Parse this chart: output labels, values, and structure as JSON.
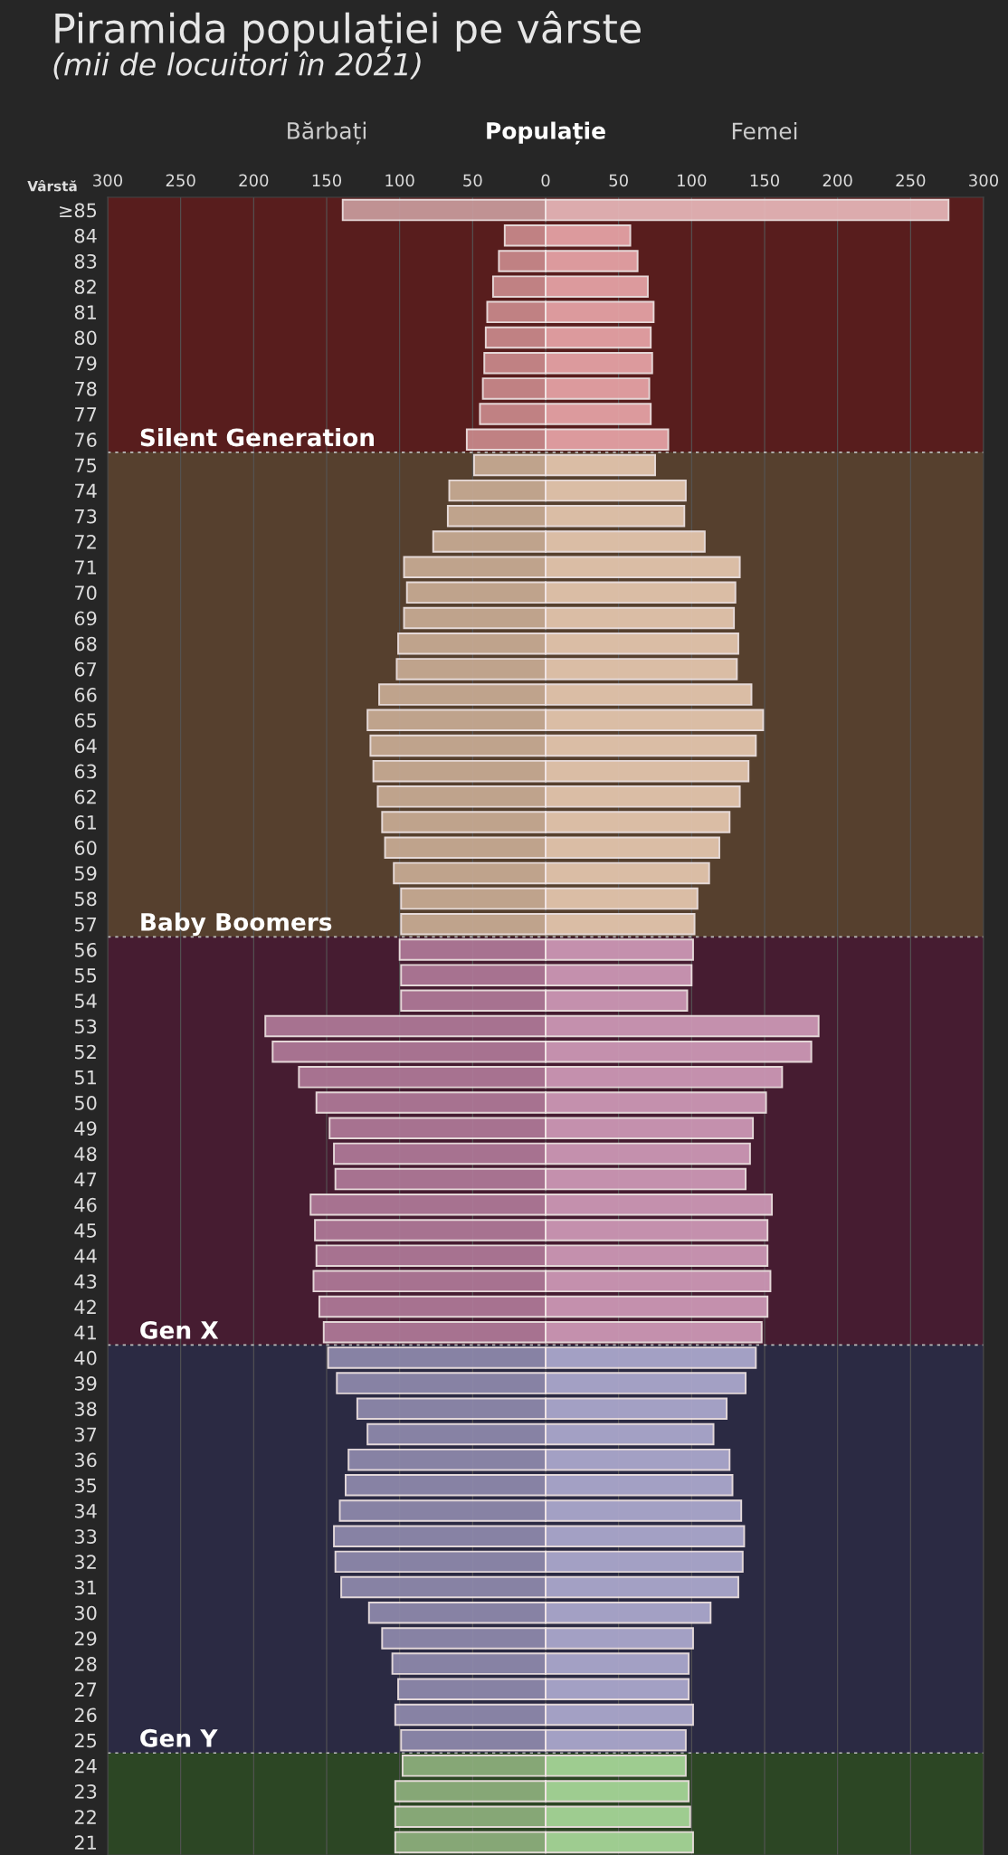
{
  "chart_data": {
    "type": "bar",
    "orientation": "horizontal",
    "title": "Piramida populației pe vârste",
    "subtitle": "(mii de locuitori în 2021)",
    "xlabel": "Populație",
    "ylabel": "Vârstă",
    "categories": [
      "≥85",
      "84",
      "83",
      "82",
      "81",
      "80",
      "79",
      "78",
      "77",
      "76",
      "75",
      "74",
      "73",
      "72",
      "71",
      "70",
      "69",
      "68",
      "67",
      "66",
      "65",
      "64",
      "63",
      "62",
      "61",
      "60",
      "59",
      "58",
      "57",
      "56",
      "55",
      "54",
      "53",
      "52",
      "51",
      "50",
      "49",
      "48",
      "47",
      "46",
      "45",
      "44",
      "43",
      "42",
      "41",
      "40",
      "39",
      "38",
      "37",
      "36",
      "35",
      "34",
      "33",
      "32",
      "31",
      "30",
      "29",
      "28",
      "27",
      "26",
      "25",
      "24",
      "23",
      "22",
      "21"
    ],
    "series": [
      {
        "name": "Bărbați",
        "values": [
          -139,
          -28,
          -32,
          -36,
          -40,
          -41,
          -42,
          -43,
          -45,
          -54,
          -49,
          -66,
          -67,
          -77,
          -97,
          -95,
          -97,
          -101,
          -102,
          -114,
          -122,
          -120,
          -118,
          -115,
          -112,
          -110,
          -104,
          -99,
          -99,
          -100,
          -99,
          -99,
          -192,
          -187,
          -169,
          -157,
          -148,
          -145,
          -144,
          -161,
          -158,
          -157,
          -159,
          -155,
          -152,
          -149,
          -143,
          -129,
          -122,
          -135,
          -137,
          -141,
          -145,
          -144,
          -140,
          -121,
          -112,
          -105,
          -101,
          -103,
          -99,
          -98,
          -103,
          -103,
          -103
        ],
        "colors": [
          "#c99c9e",
          "#c98a8c",
          "#c98a8c",
          "#c98a8c",
          "#c98a8c",
          "#c98a8c",
          "#c98a8c",
          "#c98a8c",
          "#c98a8c",
          "#c98a8c",
          "#c8ac95",
          "#c8ac95",
          "#c8ac95",
          "#c8ac95",
          "#c8ac95",
          "#c8ac95",
          "#c8ac95",
          "#c8ac95",
          "#c8ac95",
          "#c8ac95",
          "#c8ac95",
          "#c8ac95",
          "#c8ac95",
          "#c8ac95",
          "#c8ac95",
          "#c8ac95",
          "#c8ac95",
          "#c8ac95",
          "#c8ac95",
          "#b07a99",
          "#b07a99",
          "#b07a99",
          "#b07a99",
          "#b07a99",
          "#b07a99",
          "#b07a99",
          "#b07a99",
          "#b07a99",
          "#b07a99",
          "#b07a99",
          "#b07a99",
          "#b07a99",
          "#b07a99",
          "#b07a99",
          "#b07a99",
          "#8f8aad",
          "#8f8aad",
          "#8f8aad",
          "#8f8aad",
          "#8f8aad",
          "#8f8aad",
          "#8f8aad",
          "#8f8aad",
          "#8f8aad",
          "#8f8aad",
          "#8f8aad",
          "#8f8aad",
          "#8f8aad",
          "#8f8aad",
          "#8f8aad",
          "#8f8aad",
          "#8eb07e",
          "#8eb07e",
          "#8eb07e",
          "#8eb07e"
        ]
      },
      {
        "name": "Femei",
        "values": [
          276,
          58,
          63,
          70,
          74,
          72,
          73,
          71,
          72,
          84,
          75,
          96,
          95,
          109,
          133,
          130,
          129,
          132,
          131,
          141,
          149,
          144,
          139,
          133,
          126,
          119,
          112,
          104,
          102,
          101,
          100,
          97,
          187,
          182,
          162,
          151,
          142,
          140,
          137,
          155,
          152,
          152,
          154,
          152,
          148,
          144,
          137,
          124,
          115,
          126,
          128,
          134,
          136,
          135,
          132,
          113,
          101,
          98,
          98,
          101,
          96,
          96,
          98,
          99,
          101
        ],
        "colors": [
          "#e8b8ba",
          "#e8a5a8",
          "#e8a5a8",
          "#e8a5a8",
          "#e8a5a8",
          "#e8a5a8",
          "#e8a5a8",
          "#e8a5a8",
          "#e8a5a8",
          "#e8a5a8",
          "#e6c8b0",
          "#e6c8b0",
          "#e6c8b0",
          "#e6c8b0",
          "#e6c8b0",
          "#e6c8b0",
          "#e6c8b0",
          "#e6c8b0",
          "#e6c8b0",
          "#e6c8b0",
          "#e6c8b0",
          "#e6c8b0",
          "#e6c8b0",
          "#e6c8b0",
          "#e6c8b0",
          "#e6c8b0",
          "#e6c8b0",
          "#e6c8b0",
          "#e6c8b0",
          "#cf9ab8",
          "#cf9ab8",
          "#cf9ab8",
          "#cf9ab8",
          "#cf9ab8",
          "#cf9ab8",
          "#cf9ab8",
          "#cf9ab8",
          "#cf9ab8",
          "#cf9ab8",
          "#cf9ab8",
          "#cf9ab8",
          "#cf9ab8",
          "#cf9ab8",
          "#cf9ab8",
          "#cf9ab8",
          "#aeaacf",
          "#aeaacf",
          "#aeaacf",
          "#aeaacf",
          "#aeaacf",
          "#aeaacf",
          "#aeaacf",
          "#aeaacf",
          "#aeaacf",
          "#aeaacf",
          "#aeaacf",
          "#aeaacf",
          "#aeaacf",
          "#aeaacf",
          "#aeaacf",
          "#aeaacf",
          "#a8d89a",
          "#a8d89a",
          "#a8d89a",
          "#a8d89a"
        ]
      }
    ],
    "xlim": [
      -300,
      300
    ],
    "xticks": [
      {
        "value": -300,
        "label": "300"
      },
      {
        "value": -250,
        "label": "250"
      },
      {
        "value": -200,
        "label": "200"
      },
      {
        "value": -150,
        "label": "150"
      },
      {
        "value": -100,
        "label": "100"
      },
      {
        "value": -50,
        "label": "50"
      },
      0,
      50,
      100,
      150,
      200,
      250,
      300
    ],
    "bands": [
      {
        "axis": "y",
        "from": "≥85",
        "to": "76",
        "label": "Silent Generation",
        "color": "#5e1d1d"
      },
      {
        "axis": "y",
        "from": "75",
        "to": "57",
        "label": "Baby Boomers",
        "color": "#5c4430"
      },
      {
        "axis": "y",
        "from": "56",
        "to": "41",
        "label": "Gen X",
        "color": "#4a1c33"
      },
      {
        "axis": "y",
        "from": "40",
        "to": "25",
        "label": "Gen Y",
        "color": "#2c2b47"
      },
      {
        "axis": "y",
        "from": "24",
        "to": "21",
        "color": "#2d4a25"
      }
    ],
    "grid": "x"
  }
}
